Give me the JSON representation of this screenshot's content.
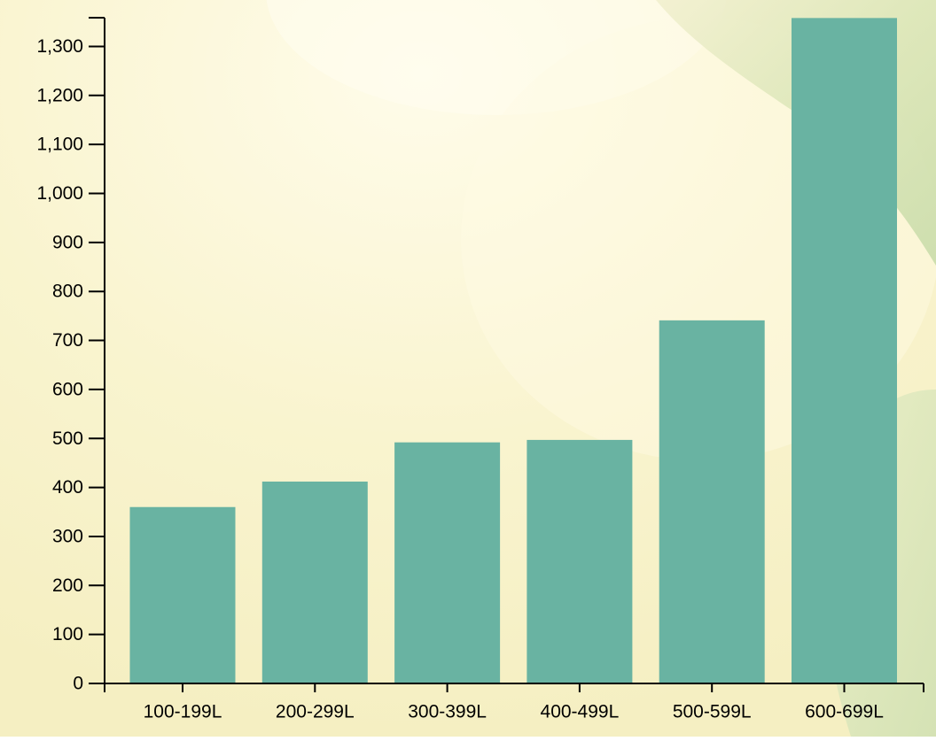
{
  "chart_data": {
    "type": "bar",
    "categories": [
      "100-199L",
      "200-299L",
      "300-399L",
      "400-499L",
      "500-599L",
      "600-699L"
    ],
    "values": [
      360,
      412,
      492,
      497,
      741,
      1358
    ],
    "title": "",
    "xlabel": "",
    "ylabel": "",
    "ylim": [
      0,
      1360
    ],
    "yticks": [
      0,
      100,
      200,
      300,
      400,
      500,
      600,
      700,
      800,
      900,
      1000,
      1100,
      1200,
      1300
    ],
    "ytick_labels": [
      "0",
      "100",
      "200",
      "300",
      "400",
      "500",
      "600",
      "700",
      "800",
      "900",
      "1,000",
      "1,100",
      "1,200",
      "1,300"
    ],
    "grid": false,
    "legend": "none"
  },
  "colors": {
    "bar": "#69b3a2",
    "axis": "#000000",
    "text": "#000000",
    "background_light": "#fbf7d6",
    "background_green": "#dfe8bc"
  }
}
